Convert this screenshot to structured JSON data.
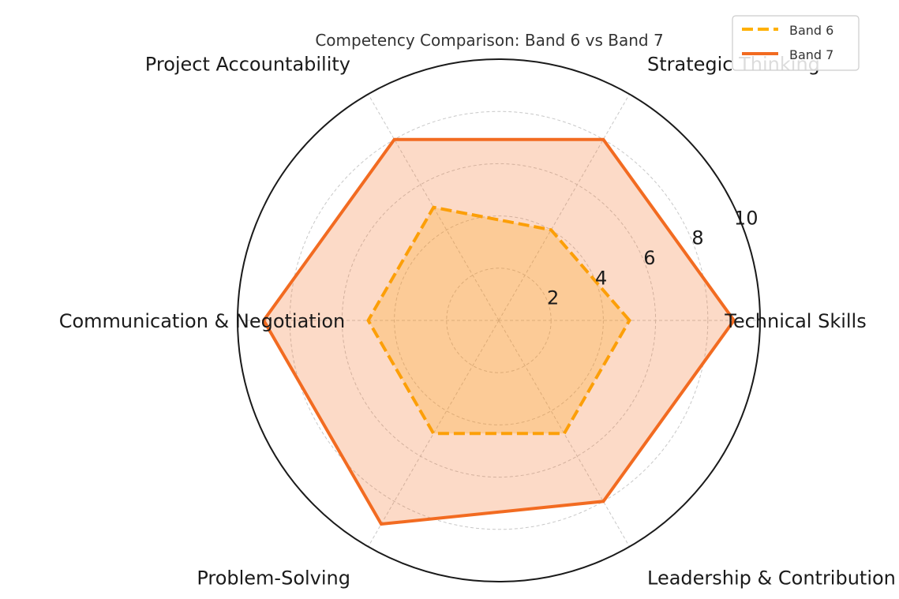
{
  "chart_data": {
    "type": "radar",
    "title": "Competency Comparison: Band 6 vs Band 7",
    "categories": [
      "Technical Skills",
      "Strategic Thinking",
      "Project Accountability",
      "Communication & Negotiation",
      "Problem-Solving",
      "Leadership & Contribution"
    ],
    "series": [
      {
        "name": "Band 6",
        "values": [
          5,
          4,
          5,
          5,
          5,
          5
        ],
        "color": "#FFB000",
        "line_style": "dashed"
      },
      {
        "name": "Band 7",
        "values": [
          9,
          8,
          8,
          9,
          9,
          8
        ],
        "color": "#F26B21",
        "line_style": "solid",
        "fill_color": "#F26B21"
      }
    ],
    "rlim": [
      0,
      10
    ],
    "rticks": [
      "2",
      "4",
      "6",
      "8",
      "10"
    ],
    "grid": true,
    "legend": "top-right"
  }
}
